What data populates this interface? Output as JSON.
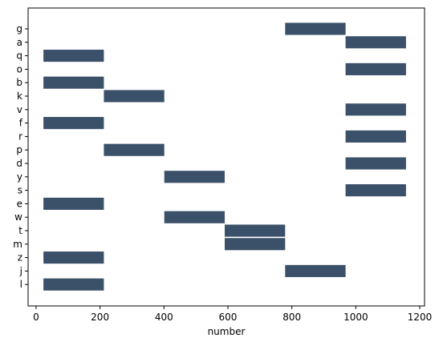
{
  "chart_data": {
    "type": "bar",
    "orientation": "horizontal",
    "title": "",
    "xlabel": "number",
    "ylabel": "",
    "xlim": [
      -25,
      1215
    ],
    "x_ticks": [
      0,
      200,
      400,
      600,
      800,
      1000,
      1200
    ],
    "grid": false,
    "color": "#3b5069",
    "categories": [
      "g",
      "a",
      "q",
      "o",
      "b",
      "k",
      "v",
      "f",
      "r",
      "p",
      "d",
      "y",
      "s",
      "e",
      "w",
      "t",
      "m",
      "z",
      "j",
      "l"
    ],
    "bars": [
      {
        "category": "g",
        "start": 779,
        "end": 968
      },
      {
        "category": "a",
        "start": 968,
        "end": 1157
      },
      {
        "category": "q",
        "start": 23,
        "end": 212
      },
      {
        "category": "o",
        "start": 968,
        "end": 1157
      },
      {
        "category": "b",
        "start": 23,
        "end": 212
      },
      {
        "category": "k",
        "start": 212,
        "end": 401
      },
      {
        "category": "v",
        "start": 968,
        "end": 1157
      },
      {
        "category": "f",
        "start": 23,
        "end": 212
      },
      {
        "category": "r",
        "start": 968,
        "end": 1157
      },
      {
        "category": "p",
        "start": 212,
        "end": 401
      },
      {
        "category": "d",
        "start": 968,
        "end": 1157
      },
      {
        "category": "y",
        "start": 401,
        "end": 590
      },
      {
        "category": "s",
        "start": 968,
        "end": 1157
      },
      {
        "category": "e",
        "start": 23,
        "end": 212
      },
      {
        "category": "w",
        "start": 401,
        "end": 590
      },
      {
        "category": "t",
        "start": 590,
        "end": 779
      },
      {
        "category": "m",
        "start": 590,
        "end": 779
      },
      {
        "category": "z",
        "start": 23,
        "end": 212
      },
      {
        "category": "j",
        "start": 779,
        "end": 968
      },
      {
        "category": "l",
        "start": 23,
        "end": 212
      }
    ]
  }
}
